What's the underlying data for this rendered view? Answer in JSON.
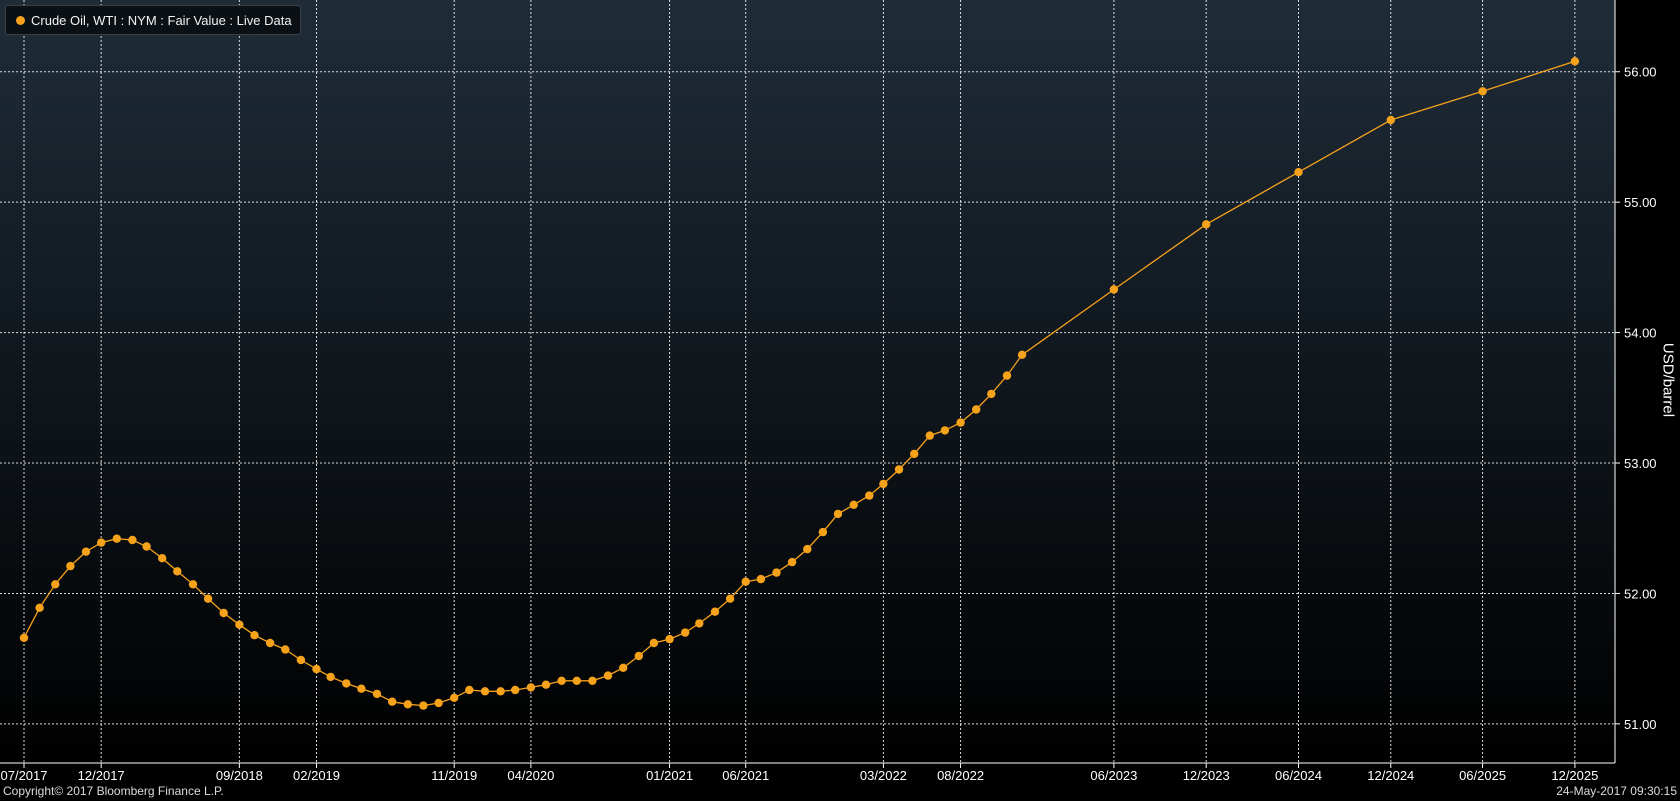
{
  "legend": {
    "label": "Crude Oil, WTI : NYM : Fair Value : Live Data"
  },
  "footer": {
    "copyright": "Copyright© 2017 Bloomberg Finance L.P.",
    "timestamp": "24-May-2017 09:30:15"
  },
  "colors": {
    "series": "#f7a21b",
    "grid": "#ffffff",
    "background_top": "#1f2c38",
    "background_bottom": "#000000"
  },
  "chart_data": {
    "type": "line",
    "title": "",
    "xlabel": "",
    "ylabel": "USD/barrel",
    "ylim": [
      50.7,
      56.55
    ],
    "x_range": [
      "2017-07-01",
      "2025-12-31"
    ],
    "grid": true,
    "legend_position": "top-left",
    "y_ticks": [
      51,
      52,
      53,
      54,
      55,
      56
    ],
    "y_tick_labels": [
      "51.00",
      "52.00",
      "53.00",
      "54.00",
      "55.00",
      "56.00"
    ],
    "x_ticks": [
      {
        "label": "07/2017",
        "date": "2017-07-01"
      },
      {
        "label": "12/2017",
        "date": "2017-12-01"
      },
      {
        "label": "09/2018",
        "date": "2018-09-01"
      },
      {
        "label": "02/2019",
        "date": "2019-02-01"
      },
      {
        "label": "11/2019",
        "date": "2019-11-01"
      },
      {
        "label": "04/2020",
        "date": "2020-04-01"
      },
      {
        "label": "01/2021",
        "date": "2021-01-01"
      },
      {
        "label": "06/2021",
        "date": "2021-06-01"
      },
      {
        "label": "03/2022",
        "date": "2022-03-01"
      },
      {
        "label": "08/2022",
        "date": "2022-08-01"
      },
      {
        "label": "06/2023",
        "date": "2023-06-01"
      },
      {
        "label": "12/2023",
        "date": "2023-12-01"
      },
      {
        "label": "06/2024",
        "date": "2024-06-01"
      },
      {
        "label": "12/2024",
        "date": "2024-12-01"
      },
      {
        "label": "06/2025",
        "date": "2025-06-01"
      },
      {
        "label": "12/2025",
        "date": "2025-12-01"
      }
    ],
    "series": [
      {
        "name": "Crude Oil, WTI : NYM : Fair Value : Live Data",
        "x": [
          "2017-07",
          "2017-08",
          "2017-09",
          "2017-10",
          "2017-11",
          "2017-12",
          "2018-01",
          "2018-02",
          "2018-03",
          "2018-04",
          "2018-05",
          "2018-06",
          "2018-07",
          "2018-08",
          "2018-09",
          "2018-10",
          "2018-11",
          "2018-12",
          "2019-01",
          "2019-02",
          "2019-03",
          "2019-04",
          "2019-05",
          "2019-06",
          "2019-07",
          "2019-08",
          "2019-09",
          "2019-10",
          "2019-11",
          "2019-12",
          "2020-01",
          "2020-02",
          "2020-03",
          "2020-04",
          "2020-05",
          "2020-06",
          "2020-07",
          "2020-08",
          "2020-09",
          "2020-10",
          "2020-11",
          "2020-12",
          "2021-01",
          "2021-02",
          "2021-03",
          "2021-04",
          "2021-05",
          "2021-06",
          "2021-07",
          "2021-08",
          "2021-09",
          "2021-10",
          "2021-11",
          "2021-12",
          "2022-01",
          "2022-02",
          "2022-03",
          "2022-04",
          "2022-05",
          "2022-06",
          "2022-07",
          "2022-08",
          "2022-09",
          "2022-10",
          "2022-11",
          "2022-12",
          "2023-06",
          "2023-12",
          "2024-06",
          "2024-12",
          "2025-06",
          "2025-12"
        ],
        "values": [
          51.66,
          51.89,
          52.07,
          52.21,
          52.32,
          52.39,
          52.42,
          52.41,
          52.36,
          52.27,
          52.17,
          52.07,
          51.96,
          51.85,
          51.76,
          51.68,
          51.62,
          51.57,
          51.49,
          51.42,
          51.36,
          51.31,
          51.27,
          51.23,
          51.17,
          51.15,
          51.14,
          51.16,
          51.2,
          51.26,
          51.25,
          51.25,
          51.26,
          51.28,
          51.3,
          51.33,
          51.33,
          51.33,
          51.37,
          51.43,
          51.52,
          51.62,
          51.65,
          51.7,
          51.77,
          51.86,
          51.96,
          52.09,
          52.11,
          52.16,
          52.24,
          52.34,
          52.47,
          52.61,
          52.68,
          52.75,
          52.84,
          52.95,
          53.07,
          53.21,
          53.25,
          53.31,
          53.41,
          53.53,
          53.67,
          53.83,
          54.33,
          54.83,
          55.23,
          55.63,
          55.85,
          56.08
        ]
      }
    ]
  }
}
